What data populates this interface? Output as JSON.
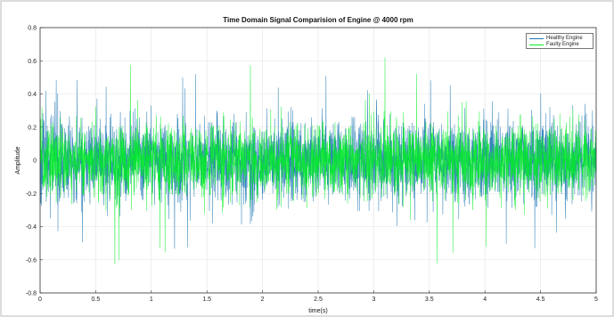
{
  "chart_data": {
    "type": "line",
    "title": "Time Domain Signal Comparision of Engine @ 4000 rpm",
    "xlabel": "time(s)",
    "ylabel": "Amplitude",
    "xlim": [
      0,
      5
    ],
    "ylim": [
      -0.8,
      0.8
    ],
    "x_ticks": [
      "0",
      "0.5",
      "1",
      "1.5",
      "2",
      "2.5",
      "3",
      "3.5",
      "4",
      "4.5",
      "5"
    ],
    "y_ticks": [
      "-0.8",
      "-0.6",
      "-0.4",
      "-0.2",
      "0",
      "0.2",
      "0.4",
      "0.6",
      "0.8"
    ],
    "grid": true,
    "legend_position": "top-right",
    "series": [
      {
        "name": "Healthy Engine",
        "color": "#1f77b4",
        "description_values": {
          "typical_band": [
            -0.22,
            0.22
          ],
          "peak_min": -0.55,
          "peak_max": 0.52
        }
      },
      {
        "name": "Faulty Engine",
        "color": "#00ee22",
        "description_values": {
          "typical_band": [
            -0.2,
            0.2
          ],
          "peak_min": -0.63,
          "peak_max": 0.63
        }
      }
    ]
  }
}
